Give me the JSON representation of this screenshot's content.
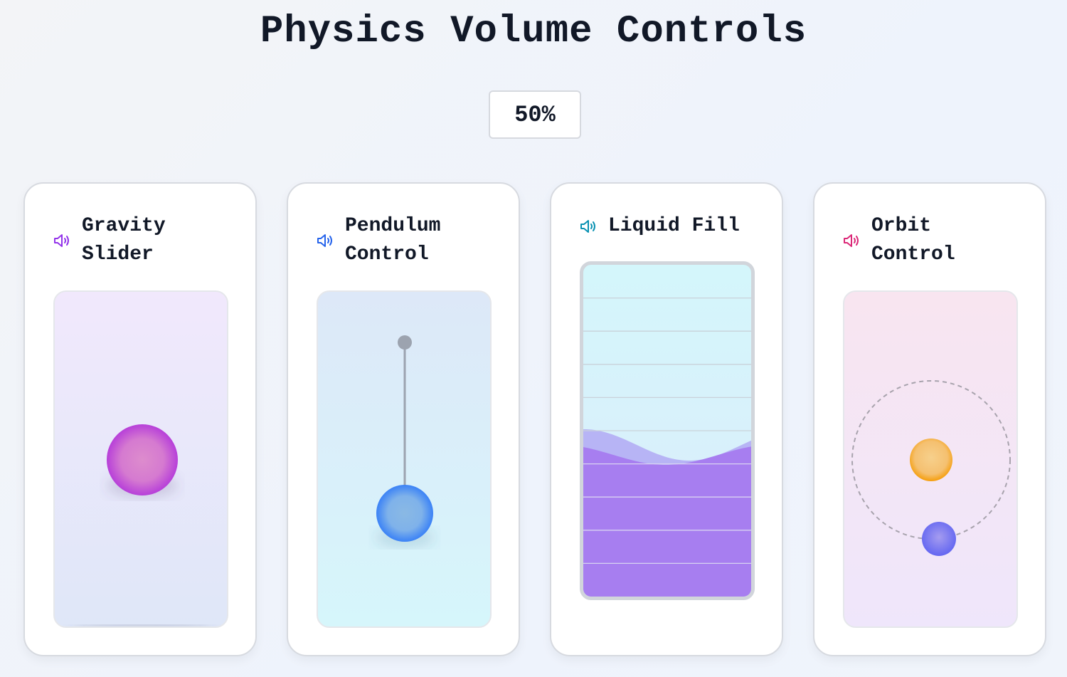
{
  "title": "Physics Volume Controls",
  "volume": {
    "value": 50,
    "label": "50%"
  },
  "cards": [
    {
      "label": "Gravity Slider",
      "icon": "speaker-icon",
      "accent": "#9333ea"
    },
    {
      "label": "Pendulum Control",
      "icon": "speaker-icon",
      "accent": "#2563eb"
    },
    {
      "label": "Liquid Fill",
      "icon": "speaker-icon",
      "accent": "#0891b2"
    },
    {
      "label": "Orbit Control",
      "icon": "speaker-icon",
      "accent": "#db2777"
    }
  ]
}
